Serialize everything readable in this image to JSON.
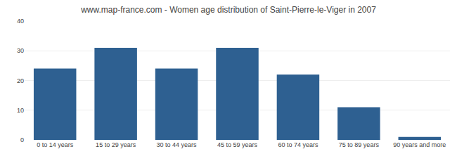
{
  "chart_data": {
    "type": "bar",
    "title": "www.map-france.com - Women age distribution of Saint-Pierre-le-Viger in 2007",
    "categories": [
      "0 to 14 years",
      "15 to 29 years",
      "30 to 44 years",
      "45 to 59 years",
      "60 to 74 years",
      "75 to 89 years",
      "90 years and more"
    ],
    "values": [
      24,
      31,
      24,
      31,
      22,
      11,
      1
    ],
    "color": "#2e6091",
    "ylim": [
      0,
      40
    ],
    "yticks": [
      0,
      10,
      20,
      30,
      40
    ],
    "grid": true
  }
}
